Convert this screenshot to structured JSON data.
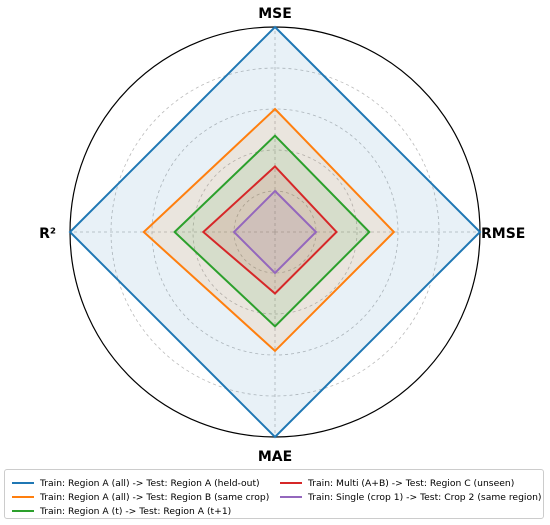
{
  "chart_data": {
    "type": "radar",
    "axes": [
      "MSE",
      "RMSE",
      "MAE",
      "R²"
    ],
    "grid": true,
    "series": [
      {
        "name": "Train: Region A (all) -> Test: Region A (held-out)",
        "values": [
          1.0,
          1.0,
          1.0,
          1.0
        ],
        "color": "#1f77b4"
      },
      {
        "name": "Train: Region A (all) -> Test: Region B (same crop)",
        "values": [
          0.6,
          0.58,
          0.58,
          0.64
        ],
        "color": "#ff7f0e"
      },
      {
        "name": "Train: Region A (t) -> Test: Region A (t+1)",
        "values": [
          0.47,
          0.46,
          0.46,
          0.49
        ],
        "color": "#2ca02c"
      },
      {
        "name": "Train: Multi (A+B) -> Test: Region C (unseen)",
        "values": [
          0.32,
          0.3,
          0.3,
          0.35
        ],
        "color": "#d62728"
      },
      {
        "name": "Train: Single (crop 1) -> Test: Crop 2 (same region)",
        "values": [
          0.2,
          0.2,
          0.2,
          0.2
        ],
        "color": "#9467bd"
      }
    ],
    "legend_position": "bottom"
  }
}
